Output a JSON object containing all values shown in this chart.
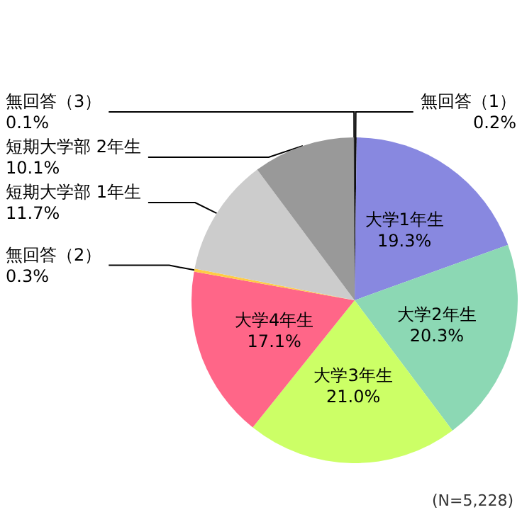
{
  "chart_data": {
    "type": "pie",
    "categories": [
      "無回答（1）",
      "大学1年生",
      "大学2年生",
      "大学3年生",
      "大学4年生",
      "無回答（2）",
      "短期大学部 1年生",
      "短期大学部 2年生",
      "無回答（3）"
    ],
    "values": [
      0.2,
      19.3,
      20.3,
      21.0,
      17.1,
      0.3,
      11.7,
      10.1,
      0.1
    ],
    "value_labels": [
      "0.2%",
      "19.3%",
      "20.3%",
      "21.0%",
      "17.1%",
      "0.3%",
      "11.7%",
      "10.1%",
      "0.1%"
    ],
    "colors": [
      "#111111",
      "#8888e0",
      "#8cd8b4",
      "#ccff66",
      "#ff6688",
      "#ffcc44",
      "#cccccc",
      "#999999",
      "#333333"
    ],
    "annotations": [
      "(N=5,228)"
    ]
  }
}
